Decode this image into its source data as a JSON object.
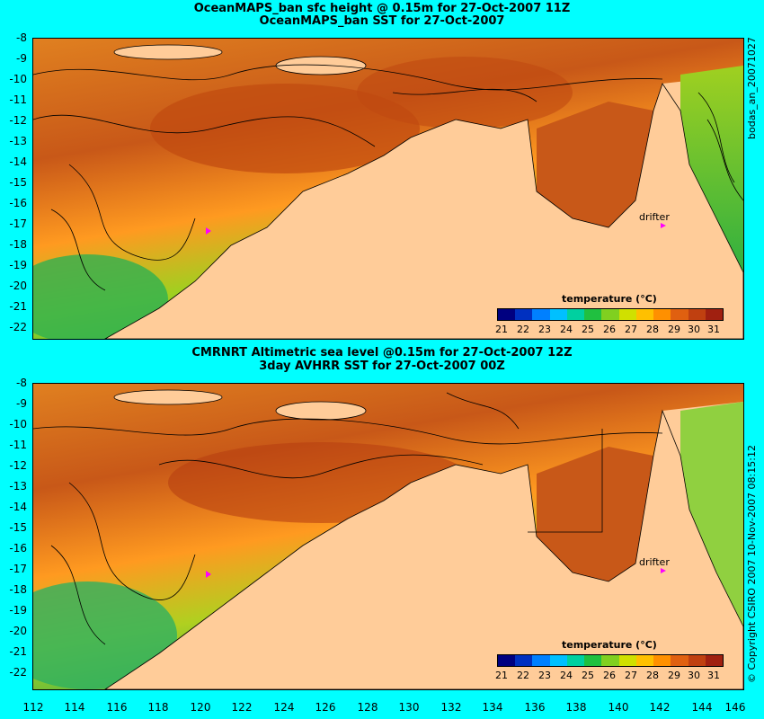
{
  "top_panel": {
    "title_line1": "OceanMAPS_ban sfc height @ 0.15m for 27-Oct-2007 11Z",
    "title_line2": "OceanMAPS_ban SST for 27-Oct-2007",
    "side_label": "bodas_an_20071027",
    "drifter_label": "drifter"
  },
  "bottom_panel": {
    "title_line1": "CMRNRT Altimetric sea level  @0.15m  for 27-Oct-2007 12Z",
    "title_line2": "3day AVHRR SST for 27-Oct-2007 00Z",
    "side_label": "© Copyright CSIRO 2007   10-Nov-2007 08:15:12",
    "drifter_label": "drifter"
  },
  "legend": {
    "title": "temperature (°C)",
    "labels": [
      "21",
      "22",
      "23",
      "24",
      "25",
      "26",
      "27",
      "28",
      "29",
      "30",
      "31"
    ],
    "colors": [
      "#000080",
      "#0030c0",
      "#0080ff",
      "#00c0ff",
      "#00d0a0",
      "#20c040",
      "#80d020",
      "#d0e000",
      "#ffc000",
      "#ff9000",
      "#e06010",
      "#c04010",
      "#a02010"
    ]
  },
  "axes": {
    "y_labels": [
      "-8",
      "-9",
      "-10",
      "-11",
      "-12",
      "-13",
      "-14",
      "-15",
      "-16",
      "-17",
      "-18",
      "-19",
      "-20",
      "-21",
      "-22"
    ],
    "x_labels": [
      "112",
      "114",
      "116",
      "118",
      "120",
      "122",
      "124",
      "126",
      "128",
      "130",
      "132",
      "134",
      "136",
      "138",
      "140",
      "142",
      "144",
      "146"
    ]
  },
  "colors": {
    "background": "#00ffff",
    "land": "#ffcc99",
    "warm_sea": "#d06018",
    "mid_sea": "#ff9020",
    "cool_sea": "#60c030",
    "drifter": "#ff00ff"
  }
}
